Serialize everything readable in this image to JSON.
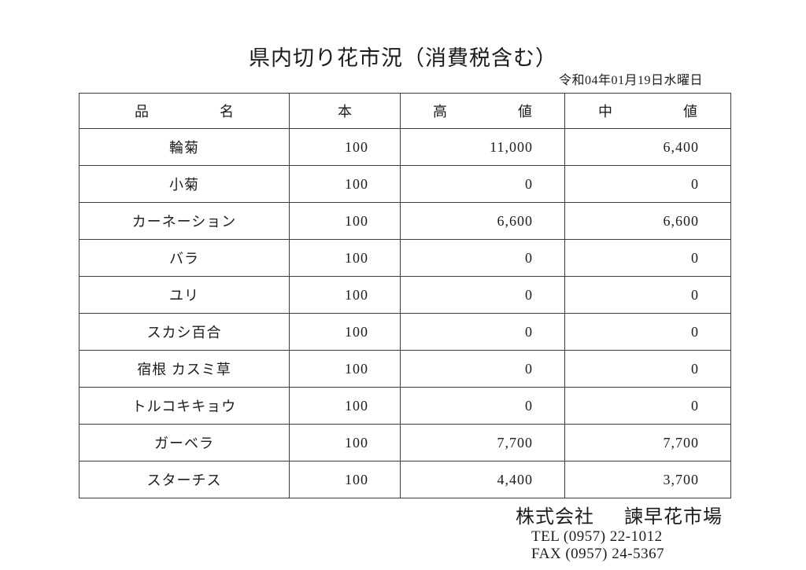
{
  "page": {
    "title": "県内切り花市況（消費税含む）",
    "date": "令和04年01月19日水曜日"
  },
  "table": {
    "headers": {
      "name_left": "品",
      "name_right": "名",
      "count": "本",
      "high_left": "高",
      "high_right": "値",
      "mid_left": "中",
      "mid_right": "値"
    },
    "rows": [
      {
        "name": "輪菊",
        "count": "100",
        "high": "11,000",
        "mid": "6,400"
      },
      {
        "name": "小菊",
        "count": "100",
        "high": "0",
        "mid": "0"
      },
      {
        "name": "カーネーション",
        "count": "100",
        "high": "6,600",
        "mid": "6,600"
      },
      {
        "name": "バラ",
        "count": "100",
        "high": "0",
        "mid": "0"
      },
      {
        "name": "ユリ",
        "count": "100",
        "high": "0",
        "mid": "0"
      },
      {
        "name": "スカシ百合",
        "count": "100",
        "high": "0",
        "mid": "0"
      },
      {
        "name": "宿根 カスミ草",
        "count": "100",
        "high": "0",
        "mid": "0"
      },
      {
        "name": "トルコキキョウ",
        "count": "100",
        "high": "0",
        "mid": "0"
      },
      {
        "name": "ガーベラ",
        "count": "100",
        "high": "7,700",
        "mid": "7,700"
      },
      {
        "name": "スターチス",
        "count": "100",
        "high": "4,400",
        "mid": "3,700"
      }
    ]
  },
  "footer": {
    "company_prefix": "株式会社",
    "company_name": "諫早花市場",
    "tel": "TEL (0957) 22-1012",
    "fax": "FAX (0957) 24-5367"
  }
}
